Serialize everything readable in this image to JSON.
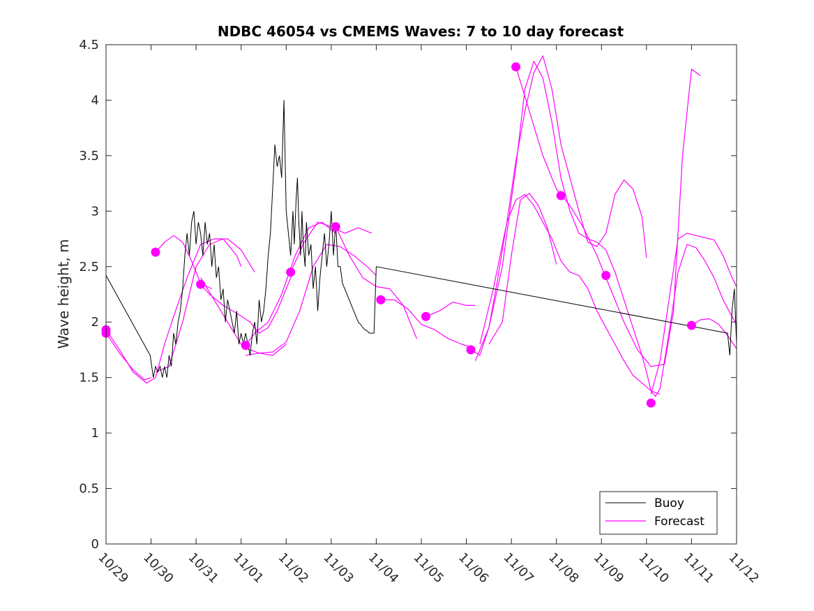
{
  "chart_data": {
    "type": "line",
    "title": "NDBC 46054 vs CMEMS Waves: 7 to 10 day forecast",
    "xlabel": "",
    "ylabel": "Wave height, m",
    "x_ticks": [
      "10/29",
      "10/30",
      "10/31",
      "11/01",
      "11/02",
      "11/03",
      "11/04",
      "11/05",
      "11/06",
      "11/07",
      "11/08",
      "11/09",
      "11/10",
      "11/11",
      "11/12"
    ],
    "y_ticks": [
      "0",
      "0.5",
      "1",
      "1.5",
      "2",
      "2.5",
      "3",
      "3.5",
      "4",
      "4.5"
    ],
    "xlim": [
      0,
      14
    ],
    "ylim": [
      0,
      4.5
    ],
    "grid": false,
    "legend": {
      "position": "bottom-right",
      "entries": [
        "Buoy",
        "Forecast"
      ]
    },
    "colors": {
      "buoy": "#000000",
      "forecast": "#ff00ff"
    },
    "series": [
      {
        "name": "Buoy",
        "x": [
          0,
          0.98,
          1.05,
          1.1,
          1.15,
          1.2,
          1.25,
          1.3,
          1.35,
          1.4,
          1.45,
          1.5,
          1.55,
          1.6,
          1.65,
          1.7,
          1.75,
          1.8,
          1.85,
          1.9,
          1.95,
          2.0,
          2.05,
          2.1,
          2.15,
          2.2,
          2.25,
          2.3,
          2.35,
          2.4,
          2.45,
          2.5,
          2.55,
          2.6,
          2.65,
          2.7,
          2.75,
          2.8,
          2.85,
          2.9,
          2.95,
          3.0,
          3.05,
          3.1,
          3.15,
          3.2,
          3.25,
          3.3,
          3.35,
          3.4,
          3.45,
          3.5,
          3.55,
          3.6,
          3.65,
          3.7,
          3.75,
          3.8,
          3.85,
          3.9,
          3.95,
          4.0,
          4.05,
          4.1,
          4.15,
          4.18,
          4.22,
          4.25,
          4.28,
          4.32,
          4.35,
          4.38,
          4.42,
          4.45,
          4.5,
          4.55,
          4.6,
          4.65,
          4.7,
          4.75,
          4.8,
          4.85,
          4.9,
          4.95,
          5.0,
          5.05,
          5.1,
          5.15,
          5.2,
          5.25,
          5.3,
          5.35,
          5.4,
          5.45,
          5.5,
          5.55,
          5.6,
          5.65,
          5.7,
          5.75,
          5.8,
          5.85,
          5.9,
          5.95,
          6.0,
          13.8,
          13.85,
          13.9,
          13.95,
          14.0
        ],
        "values": [
          2.42,
          1.7,
          1.5,
          1.6,
          1.55,
          1.6,
          1.5,
          1.6,
          1.5,
          1.7,
          1.6,
          1.9,
          1.8,
          2.0,
          2.1,
          2.3,
          2.6,
          2.8,
          2.6,
          2.9,
          3.0,
          2.7,
          2.9,
          2.8,
          2.6,
          2.9,
          2.7,
          2.8,
          2.5,
          2.7,
          2.4,
          2.5,
          2.2,
          2.3,
          2.0,
          2.2,
          2.1,
          2.0,
          1.9,
          2.1,
          1.8,
          1.9,
          1.8,
          1.9,
          1.8,
          1.7,
          1.9,
          2.0,
          1.8,
          2.2,
          2.0,
          2.1,
          2.3,
          2.6,
          2.8,
          3.2,
          3.6,
          3.4,
          3.5,
          3.3,
          4.0,
          3.0,
          2.8,
          2.6,
          3.0,
          2.7,
          3.1,
          3.3,
          2.9,
          2.6,
          3.0,
          2.7,
          2.5,
          2.9,
          2.6,
          2.7,
          2.3,
          2.5,
          2.1,
          2.4,
          2.6,
          2.8,
          2.5,
          2.7,
          3.0,
          2.6,
          2.9,
          2.5,
          2.5,
          2.35,
          2.3,
          2.25,
          2.2,
          2.15,
          2.1,
          2.05,
          2.0,
          1.98,
          1.95,
          1.93,
          1.92,
          1.9,
          1.9,
          1.9,
          2.5,
          1.9,
          1.7,
          2.1,
          2.3,
          1.8
        ]
      },
      {
        "name": "Forecast",
        "segments": [
          {
            "x": [
              0,
              0.3,
              0.6,
              0.9,
              1.1
            ],
            "values": [
              1.93,
              1.75,
              1.55,
              1.45,
              1.5
            ]
          },
          {
            "x": [
              0,
              0.3,
              0.6,
              0.85,
              1.0
            ],
            "values": [
              1.9,
              1.72,
              1.57,
              1.48,
              1.5
            ]
          },
          {
            "x": [
              1.1,
              1.3,
              1.5,
              1.7,
              1.9,
              2.1,
              2.35
            ],
            "values": [
              2.63,
              2.72,
              2.78,
              2.72,
              2.55,
              2.35,
              2.3
            ]
          },
          {
            "x": [
              1.1,
              1.3,
              1.5,
              1.8,
              2.1,
              2.4,
              2.7,
              3.0,
              3.3
            ],
            "values": [
              1.5,
              1.8,
              2.05,
              2.4,
              2.7,
              2.75,
              2.75,
              2.65,
              2.45
            ]
          },
          {
            "x": [
              1.1,
              1.4,
              1.7,
              2.0,
              2.3,
              2.6,
              2.9,
              3.0
            ],
            "values": [
              1.55,
              1.6,
              2.0,
              2.5,
              2.7,
              2.75,
              2.6,
              2.5
            ]
          },
          {
            "x": [
              2.1,
              2.3,
              2.6,
              2.9,
              3.2,
              3.4,
              3.6,
              3.8,
              4.0,
              4.15
            ],
            "values": [
              2.34,
              2.25,
              2.15,
              2.08,
              2.0,
              1.9,
              1.95,
              2.1,
              2.3,
              2.45
            ]
          },
          {
            "x": [
              2.1,
              2.4,
              2.7,
              3.0,
              3.2,
              3.4,
              3.7,
              4.0
            ],
            "values": [
              2.4,
              2.2,
              2.0,
              1.8,
              1.75,
              1.72,
              1.7,
              1.8
            ]
          },
          {
            "x": [
              3.1,
              3.3,
              3.6,
              3.9,
              4.2,
              4.5,
              4.8,
              5.1
            ],
            "values": [
              1.79,
              1.9,
              2.0,
              2.25,
              2.6,
              2.85,
              2.9,
              2.8
            ]
          },
          {
            "x": [
              3.1,
              3.4,
              3.7,
              4.0,
              4.3,
              4.6,
              4.9,
              5.2,
              5.5,
              5.8,
              6.0
            ],
            "values": [
              1.7,
              1.72,
              1.73,
              1.82,
              2.1,
              2.5,
              2.7,
              2.68,
              2.6,
              2.5,
              2.42
            ]
          },
          {
            "x": [
              4.1,
              4.4,
              4.7,
              5.0,
              5.3,
              5.6,
              5.9
            ],
            "values": [
              2.45,
              2.72,
              2.9,
              2.86,
              2.8,
              2.85,
              2.8
            ]
          },
          {
            "x": [
              5.1,
              5.4,
              5.7,
              6.0,
              6.3,
              6.6,
              6.9
            ],
            "values": [
              2.86,
              2.6,
              2.4,
              2.32,
              2.3,
              2.15,
              1.85
            ]
          },
          {
            "x": [
              6.1,
              6.4,
              6.7,
              7.0,
              7.3,
              7.6,
              7.9,
              8.2
            ],
            "values": [
              2.2,
              2.2,
              2.12,
              1.98,
              1.93,
              1.85,
              1.8,
              1.76
            ]
          },
          {
            "x": [
              7.1,
              7.4,
              7.7,
              8.0,
              8.2
            ],
            "values": [
              2.05,
              2.1,
              2.18,
              2.15,
              2.15
            ]
          },
          {
            "x": [
              8.1,
              8.3,
              8.5,
              8.7,
              8.9,
              9.1,
              9.3,
              9.5,
              9.7,
              9.9,
              10.1,
              10.3,
              10.5,
              10.7,
              10.9,
              11.1,
              11.3,
              11.5,
              11.7,
              11.9,
              12.0
            ],
            "values": [
              1.75,
              1.7,
              1.95,
              2.4,
              2.9,
              3.45,
              3.9,
              4.25,
              4.4,
              4.1,
              3.6,
              3.3,
              3.0,
              2.72,
              2.68,
              2.8,
              3.15,
              3.28,
              3.2,
              2.95,
              2.58
            ]
          },
          {
            "x": [
              8.2,
              8.5,
              8.8,
              9.1,
              9.3,
              9.5,
              9.7,
              9.9,
              10.1,
              10.3,
              10.5,
              10.7,
              10.9,
              11.1,
              11.3,
              11.5,
              11.7,
              11.9,
              12.0,
              12.1,
              12.2,
              12.3,
              12.5,
              12.7,
              12.9,
              13.1,
              13.3,
              13.5,
              13.7,
              13.9,
              14.0
            ],
            "values": [
              1.65,
              1.95,
              2.5,
              3.4,
              4.1,
              4.35,
              4.2,
              3.8,
              3.3,
              3.0,
              2.8,
              2.75,
              2.72,
              2.65,
              2.45,
              2.2,
              1.95,
              1.7,
              1.55,
              1.38,
              1.33,
              1.4,
              1.9,
              2.45,
              2.7,
              2.67,
              2.55,
              2.4,
              2.2,
              2.05,
              1.98
            ]
          },
          {
            "x": [
              8.3,
              8.6,
              8.9,
              9.1,
              9.3,
              9.5,
              9.7,
              9.9,
              10.1,
              10.3,
              10.5,
              10.7,
              10.9,
              11.1,
              11.3,
              11.5,
              11.7,
              11.9,
              12.1,
              12.3
            ],
            "values": [
              1.8,
              2.3,
              2.9,
              3.1,
              3.15,
              3.05,
              2.9,
              2.75,
              2.55,
              2.45,
              2.42,
              2.3,
              2.1,
              1.95,
              1.8,
              1.65,
              1.52,
              1.45,
              1.38,
              1.35
            ]
          },
          {
            "x": [
              8.5,
              8.8,
              9.0,
              9.2,
              9.4,
              9.6,
              9.8,
              10.0
            ],
            "values": [
              1.8,
              2.0,
              2.6,
              3.1,
              3.16,
              3.05,
              2.85,
              2.52
            ]
          },
          {
            "x": [
              9.1,
              9.4,
              9.7,
              10.0,
              10.3,
              10.6,
              10.9,
              11.2,
              11.5,
              11.8,
              12.1,
              12.4,
              12.6,
              12.8,
              13.0,
              13.2
            ],
            "values": [
              4.3,
              3.9,
              3.5,
              3.2,
              3.05,
              2.85,
              2.6,
              2.3,
              2.0,
              1.75,
              1.6,
              1.62,
              2.1,
              3.5,
              4.28,
              4.22
            ]
          },
          {
            "x": [
              12.1,
              12.3,
              12.5,
              12.7,
              12.9,
              13.1,
              13.3,
              13.5,
              13.7,
              13.9,
              14.0
            ],
            "values": [
              1.35,
              1.65,
              2.2,
              2.75,
              2.8,
              2.78,
              2.76,
              2.74,
              2.6,
              2.4,
              2.32
            ]
          },
          {
            "x": [
              13.0,
              13.2,
              13.4,
              13.6,
              13.8,
              14.0
            ],
            "values": [
              1.97,
              2.02,
              2.03,
              1.98,
              1.88,
              1.76
            ]
          }
        ],
        "markers": {
          "x": [
            0,
            0,
            1.1,
            2.1,
            3.1,
            4.1,
            5.1,
            6.1,
            7.1,
            8.1,
            9.1,
            10.1,
            11.1,
            12.1,
            13.0
          ],
          "values": [
            1.93,
            1.9,
            2.63,
            2.34,
            1.79,
            2.45,
            2.86,
            2.2,
            2.05,
            1.75,
            4.3,
            3.14,
            2.42,
            1.27,
            1.97
          ]
        }
      }
    ]
  }
}
